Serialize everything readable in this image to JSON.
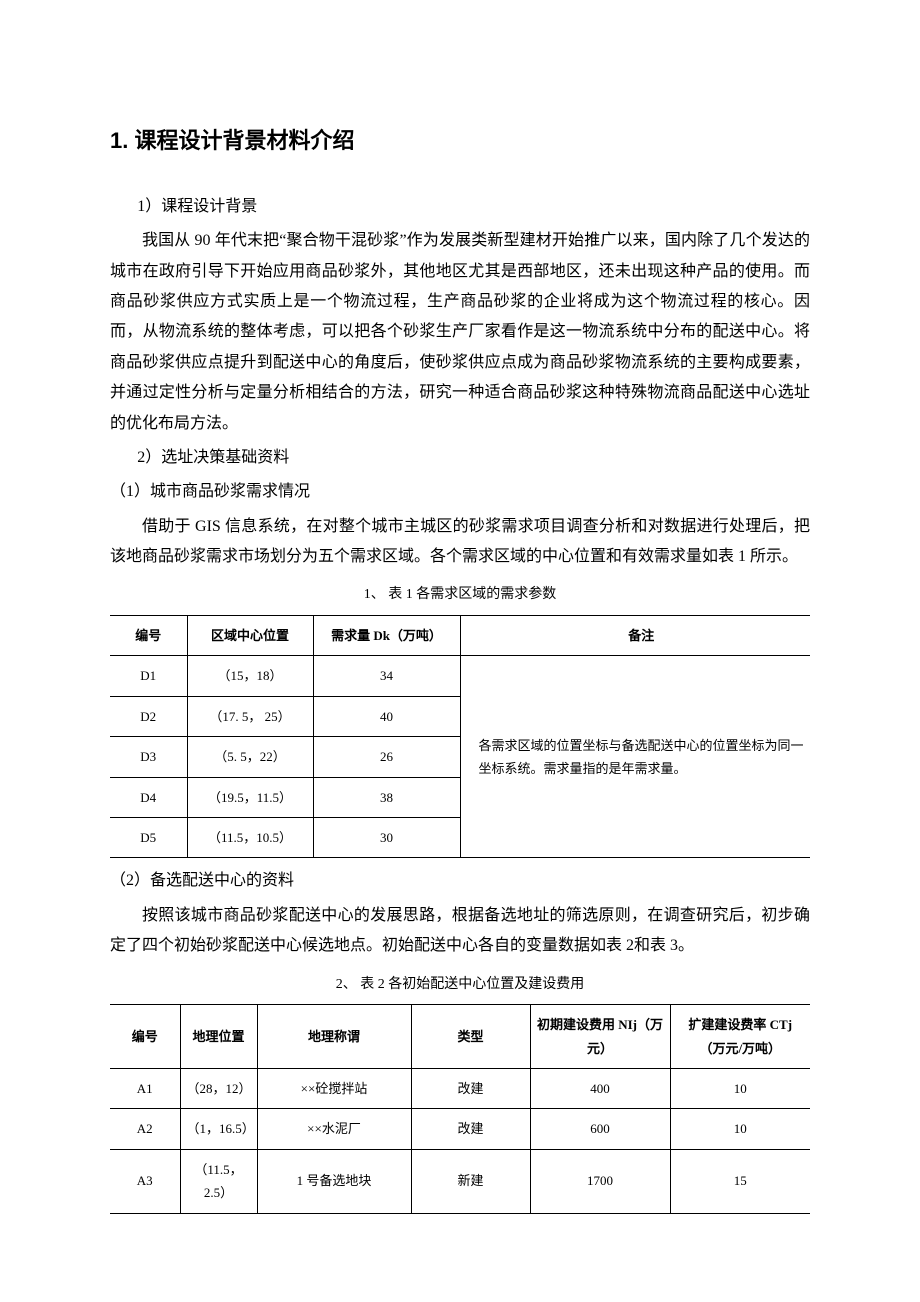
{
  "heading1": "1.  课程设计背景材料介绍",
  "section1": {
    "sub1": "1）课程设计背景",
    "p1": "我国从 90 年代末把“聚合物干混砂浆”作为发展类新型建材开始推广以来，国内除了几个发达的城市在政府引导下开始应用商品砂浆外，其他地区尤其是西部地区，还未出现这种产品的使用。而商品砂浆供应方式实质上是一个物流过程，生产商品砂浆的企业将成为这个物流过程的核心。因而，从物流系统的整体考虑，可以把各个砂浆生产厂家看作是这一物流系统中分布的配送中心。将商品砂浆供应点提升到配送中心的角度后，使砂浆供应点成为商品砂浆物流系统的主要构成要素，并通过定性分析与定量分析相结合的方法，研究一种适合商品砂浆这种特殊物流商品配送中心选址的优化布局方法。",
    "sub2": "2）选址决策基础资料",
    "sub2_1": "（1）城市商品砂浆需求情况",
    "p2": "借助于 GIS 信息系统，在对整个城市主城区的砂浆需求项目调查分析和对数据进行处理后，把该地商品砂浆需求市场划分为五个需求区域。各个需求区域的中心位置和有效需求量如表 1 所示。"
  },
  "table1": {
    "caption": "1、 表 1  各需求区域的需求参数",
    "headers": [
      "编号",
      "区域中心位置",
      "需求量 Dk（万吨）",
      "备注"
    ],
    "rows": [
      [
        "D1",
        "（15，18）",
        "34"
      ],
      [
        "D2",
        "（17. 5， 25）",
        "40"
      ],
      [
        "D3",
        "（5. 5，22）",
        "26"
      ],
      [
        "D4",
        "（19.5，11.5）",
        "38"
      ],
      [
        "D5",
        "（11.5，10.5）",
        "30"
      ]
    ],
    "note": "各需求区域的位置坐标与备选配送中心的位置坐标为同一坐标系统。需求量指的是年需求量。"
  },
  "section2": {
    "sub2_2": "（2）备选配送中心的资料",
    "p3": "按照该城市商品砂浆配送中心的发展思路，根据备选地址的筛选原则，在调查研究后，初步确定了四个初始砂浆配送中心候选地点。初始配送中心各自的变量数据如表 2和表 3。"
  },
  "table2": {
    "caption": "2、 表 2  各初始配送中心位置及建设费用",
    "headers": [
      "编号",
      "地理位置",
      "地理称谓",
      "类型",
      "初期建设费用 NIj（万元）",
      "扩建建设费率 CTj（万元/万吨）"
    ],
    "rows": [
      [
        "A1",
        "（28，12）",
        "××砼搅拌站",
        "改建",
        "400",
        "10"
      ],
      [
        "A2",
        "（1，16.5）",
        "××水泥厂",
        "改建",
        "600",
        "10"
      ],
      [
        "A3",
        "（11.5，2.5）",
        "1 号备选地块",
        "新建",
        "1700",
        "15"
      ]
    ]
  }
}
